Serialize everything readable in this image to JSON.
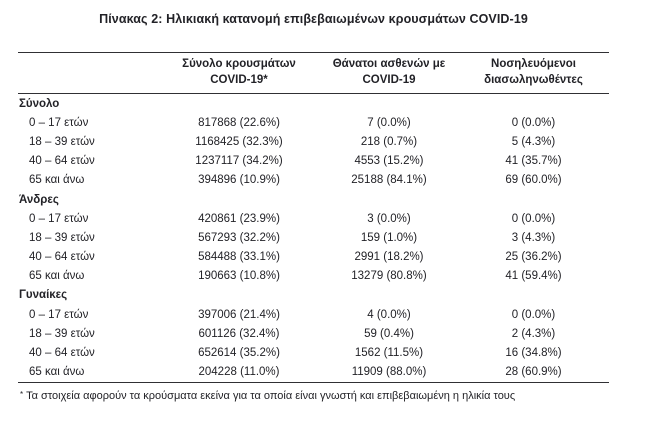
{
  "title": "Πίνακας 2: Ηλικιακή κατανομή επιβεβαιωμένων κρουσμάτων COVID-19",
  "table": {
    "column_headers": [
      {
        "line1": "Σύνολο κρουσμάτων",
        "line2": "COVID-19*"
      },
      {
        "line1": "Θάνατοι ασθενών με",
        "line2": "COVID-19"
      },
      {
        "line1": "Νοσηλευόμενοι",
        "line2": "διασωληνωθέντες"
      }
    ],
    "sections": [
      {
        "label": "Σύνολο",
        "rows": [
          {
            "age": "0 – 17 ετών",
            "cases": "817868 (22.6%)",
            "deaths": "7 (0.0%)",
            "intubated": "0 (0.0%)"
          },
          {
            "age": "18 – 39 ετών",
            "cases": "1168425 (32.3%)",
            "deaths": "218 (0.7%)",
            "intubated": "5 (4.3%)"
          },
          {
            "age": "40 – 64 ετών",
            "cases": "1237117 (34.2%)",
            "deaths": "4553 (15.2%)",
            "intubated": "41 (35.7%)"
          },
          {
            "age": "65 και άνω",
            "cases": "394896 (10.9%)",
            "deaths": "25188 (84.1%)",
            "intubated": "69 (60.0%)"
          }
        ]
      },
      {
        "label": "Άνδρες",
        "rows": [
          {
            "age": "0 – 17 ετών",
            "cases": "420861 (23.9%)",
            "deaths": "3 (0.0%)",
            "intubated": "0 (0.0%)"
          },
          {
            "age": "18 – 39 ετών",
            "cases": "567293 (32.2%)",
            "deaths": "159 (1.0%)",
            "intubated": "3 (4.3%)"
          },
          {
            "age": "40 – 64 ετών",
            "cases": "584488 (33.1%)",
            "deaths": "2991 (18.2%)",
            "intubated": "25 (36.2%)"
          },
          {
            "age": "65 και άνω",
            "cases": "190663 (10.8%)",
            "deaths": "13279 (80.8%)",
            "intubated": "41 (59.4%)"
          }
        ]
      },
      {
        "label": "Γυναίκες",
        "rows": [
          {
            "age": "0 – 17 ετών",
            "cases": "397006 (21.4%)",
            "deaths": "4 (0.0%)",
            "intubated": "0 (0.0%)"
          },
          {
            "age": "18 – 39 ετών",
            "cases": "601126 (32.4%)",
            "deaths": "59 (0.4%)",
            "intubated": "2 (4.3%)"
          },
          {
            "age": "40 – 64 ετών",
            "cases": "652614 (35.2%)",
            "deaths": "1562 (11.5%)",
            "intubated": "16 (34.8%)"
          },
          {
            "age": "65 και άνω",
            "cases": "204228 (11.0%)",
            "deaths": "11909 (88.0%)",
            "intubated": "28 (60.9%)"
          }
        ]
      }
    ]
  },
  "footnote": {
    "marker": "*",
    "text": "Τα στοιχεία αφορούν τα κρούσματα εκείνα για τα οποία είναι γνωστή και επιβεβαιωμένη η ηλικία τους"
  },
  "colors": {
    "background": "#ffffff",
    "text": "#222227",
    "rule": "#303034"
  }
}
